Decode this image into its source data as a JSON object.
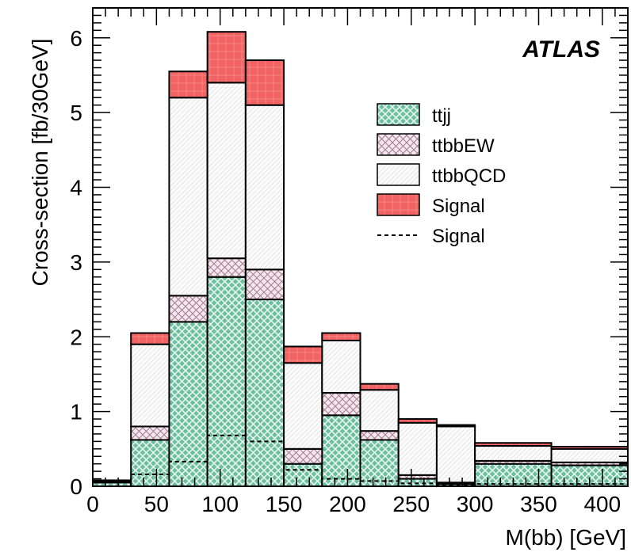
{
  "chart_data": {
    "type": "bar",
    "subtype": "stacked-histogram",
    "label": "ATLAS",
    "xlabel": "M(bb) [GeV]",
    "ylabel": "Cross-section [fb/30GeV]",
    "xlim": [
      0,
      420
    ],
    "ylim": [
      0,
      6.4
    ],
    "x_ticks": [
      0,
      50,
      100,
      150,
      200,
      250,
      300,
      350,
      400
    ],
    "y_ticks": [
      0,
      1,
      2,
      3,
      4,
      5,
      6
    ],
    "grid": false,
    "legend_position": "top-right",
    "bin_edges": [
      0,
      30,
      60,
      90,
      120,
      150,
      180,
      210,
      240,
      270,
      300,
      360,
      420
    ],
    "series": [
      {
        "name": "ttjj",
        "style": "green-cross-hatch",
        "color": "#6dbfa0",
        "values": [
          0.05,
          0.62,
          2.2,
          2.8,
          2.5,
          0.3,
          0.95,
          0.62,
          0.1,
          0.03,
          0.3,
          0.28
        ]
      },
      {
        "name": "ttbbEW",
        "style": "pink-cross-hatch",
        "color": "#c9a5b5",
        "values": [
          0.02,
          0.18,
          0.35,
          0.25,
          0.4,
          0.2,
          0.3,
          0.12,
          0.05,
          0.02,
          0.04,
          0.04
        ]
      },
      {
        "name": "ttbbQCD",
        "style": "white-hatch",
        "color": "#f4f4f4",
        "values": [
          0.01,
          1.1,
          2.65,
          2.35,
          2.2,
          1.15,
          0.7,
          0.55,
          0.7,
          0.75,
          0.2,
          0.18
        ]
      },
      {
        "name": "Signal",
        "style": "red-fill",
        "color": "#f26464",
        "values": [
          0.0,
          0.15,
          0.35,
          0.68,
          0.6,
          0.22,
          0.1,
          0.08,
          0.05,
          0.02,
          0.04,
          0.03
        ]
      }
    ],
    "overlay": {
      "name": "Signal",
      "style": "dashed-line",
      "values": [
        0.0,
        0.16,
        0.33,
        0.68,
        0.6,
        0.22,
        0.1,
        0.07,
        0.04,
        0.02,
        0.03,
        0.03
      ]
    },
    "colors": {
      "frame": "#000000",
      "signal_fill": "#f26464",
      "signal_line": "#d42020",
      "ttjj_bg": "#6dbfa0",
      "ttjj_dot": "#e6f5ef",
      "ttbbew_bg": "#f2e8ee",
      "ttbbew_line": "#a87b90",
      "ttbbqcd_bg": "#f9f9f9",
      "ttbbqcd_line": "#e2e2e2"
    }
  }
}
